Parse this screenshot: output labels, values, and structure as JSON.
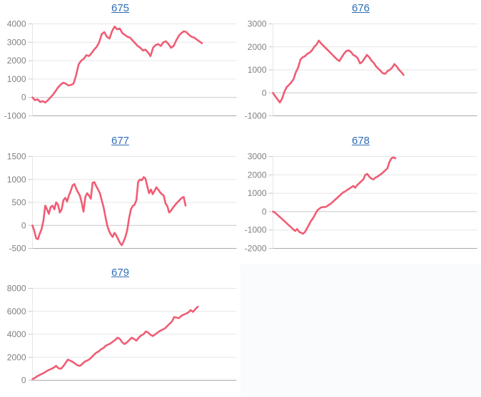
{
  "styles": {
    "line_color": "#f05c74",
    "link_color": "#2f6eb5",
    "tick_label_color": "#808080",
    "grid_line_color": "#e6e6e6",
    "zero_line_color": "#c8c8c8",
    "axis_line_color": "#a9a9a9",
    "empty_panel_color": "#fafbfc"
  },
  "chart_data": [
    {
      "id": "675",
      "title": "675",
      "type": "line",
      "title_is_link": true,
      "xlabel": "",
      "ylabel": "",
      "grid": true,
      "legend": "none",
      "ylim": [
        -1000,
        4000
      ],
      "y_ticks": [
        4000,
        3000,
        2000,
        1000,
        0,
        -1000
      ],
      "x_end_fraction": 0.83,
      "values": [
        0,
        -150,
        -100,
        -250,
        -200,
        -280,
        -150,
        0,
        150,
        350,
        550,
        700,
        800,
        750,
        650,
        680,
        750,
        1200,
        1800,
        2000,
        2100,
        2300,
        2250,
        2400,
        2600,
        2750,
        3000,
        3450,
        3550,
        3300,
        3200,
        3600,
        3850,
        3700,
        3750,
        3500,
        3400,
        3300,
        3250,
        3100,
        2950,
        2800,
        2700,
        2550,
        2600,
        2450,
        2250,
        2700,
        2850,
        2900,
        2800,
        3000,
        3050,
        2900,
        2700,
        2800,
        3100,
        3350,
        3500,
        3600,
        3550,
        3400,
        3300,
        3250,
        3150,
        3050,
        2950
      ]
    },
    {
      "id": "676",
      "title": "676",
      "type": "line",
      "title_is_link": true,
      "xlabel": "",
      "ylabel": "",
      "grid": true,
      "legend": "none",
      "ylim": [
        -1000,
        3000
      ],
      "y_ticks": [
        3000,
        2000,
        1000,
        0,
        -1000
      ],
      "x_end_fraction": 0.64,
      "values": [
        0,
        -150,
        -280,
        -420,
        -250,
        50,
        250,
        350,
        450,
        600,
        900,
        1100,
        1450,
        1550,
        1600,
        1700,
        1750,
        1850,
        2000,
        2100,
        2270,
        2150,
        2050,
        1950,
        1850,
        1750,
        1650,
        1550,
        1450,
        1380,
        1550,
        1700,
        1820,
        1850,
        1780,
        1650,
        1600,
        1500,
        1280,
        1350,
        1500,
        1650,
        1550,
        1400,
        1300,
        1150,
        1050,
        950,
        850,
        830,
        950,
        1000,
        1100,
        1250,
        1150,
        1000,
        900,
        780
      ]
    },
    {
      "id": "677",
      "title": "677",
      "type": "line",
      "title_is_link": true,
      "xlabel": "",
      "ylabel": "",
      "grid": true,
      "legend": "none",
      "ylim": [
        -500,
        1500
      ],
      "y_ticks": [
        1500,
        1000,
        500,
        0,
        -500
      ],
      "x_end_fraction": 0.75,
      "values": [
        0,
        -120,
        -280,
        -300,
        -180,
        -80,
        100,
        430,
        350,
        250,
        400,
        430,
        350,
        500,
        450,
        280,
        350,
        550,
        600,
        520,
        650,
        750,
        870,
        900,
        800,
        720,
        650,
        500,
        300,
        620,
        700,
        650,
        580,
        930,
        940,
        850,
        780,
        700,
        550,
        400,
        200,
        0,
        -120,
        -200,
        -250,
        -160,
        -220,
        -300,
        -380,
        -430,
        -350,
        -250,
        -100,
        150,
        350,
        420,
        450,
        550,
        950,
        1000,
        980,
        1050,
        1020,
        850,
        700,
        780,
        680,
        750,
        830,
        780,
        720,
        680,
        650,
        480,
        420,
        280,
        320,
        380,
        430,
        480,
        520,
        560,
        600,
        620,
        430
      ]
    },
    {
      "id": "678",
      "title": "678",
      "type": "line",
      "title_is_link": true,
      "xlabel": "",
      "ylabel": "",
      "grid": true,
      "legend": "none",
      "ylim": [
        -2000,
        3000
      ],
      "y_ticks": [
        3000,
        2000,
        1000,
        0,
        -1000,
        -2000
      ],
      "x_end_fraction": 0.6,
      "values": [
        0,
        -50,
        -150,
        -250,
        -350,
        -450,
        -550,
        -650,
        -750,
        -850,
        -950,
        -1050,
        -950,
        -1100,
        -1150,
        -1200,
        -1100,
        -900,
        -700,
        -500,
        -350,
        -150,
        50,
        150,
        230,
        250,
        250,
        300,
        380,
        450,
        550,
        650,
        750,
        850,
        950,
        1050,
        1100,
        1180,
        1250,
        1320,
        1400,
        1300,
        1450,
        1550,
        1650,
        1750,
        2000,
        2050,
        1900,
        1800,
        1750,
        1850,
        1900,
        1980,
        2050,
        2150,
        2250,
        2350,
        2700,
        2900,
        2950,
        2900
      ]
    },
    {
      "id": "679",
      "title": "679",
      "type": "line",
      "title_is_link": true,
      "xlabel": "",
      "ylabel": "",
      "grid": true,
      "legend": "none",
      "ylim": [
        0,
        8000
      ],
      "y_ticks": [
        8000,
        6000,
        4000,
        2000,
        0
      ],
      "x_end_fraction": 0.81,
      "values": [
        100,
        200,
        350,
        450,
        550,
        650,
        800,
        900,
        1000,
        1100,
        1250,
        1050,
        1000,
        1200,
        1500,
        1800,
        1700,
        1600,
        1450,
        1300,
        1250,
        1400,
        1600,
        1700,
        1800,
        2000,
        2200,
        2400,
        2500,
        2700,
        2800,
        3000,
        3100,
        3200,
        3350,
        3500,
        3700,
        3600,
        3300,
        3150,
        3300,
        3500,
        3700,
        3600,
        3450,
        3700,
        3900,
        4000,
        4250,
        4150,
        3950,
        3850,
        4000,
        4150,
        4300,
        4400,
        4500,
        4700,
        4900,
        5100,
        5500,
        5450,
        5400,
        5600,
        5700,
        5800,
        5900,
        6100,
        5950,
        6200,
        6400
      ]
    }
  ]
}
